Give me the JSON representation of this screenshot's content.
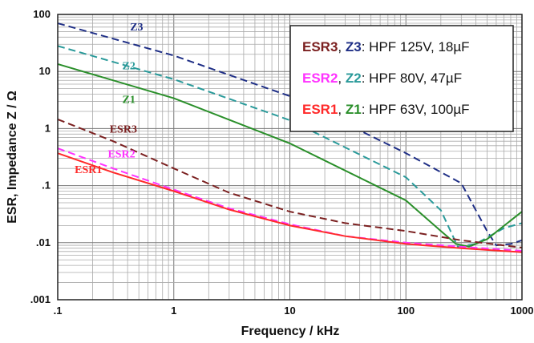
{
  "chart_data": {
    "type": "line",
    "xscale": "log",
    "yscale": "log",
    "xlim": [
      0.1,
      1000
    ],
    "ylim": [
      0.001,
      100
    ],
    "xlabel": "Frequency / kHz",
    "ylabel": "ESR, Impedance Z / Ω",
    "x_ticks": [
      {
        "value": 0.1,
        "label": ".1"
      },
      {
        "value": 1,
        "label": "1"
      },
      {
        "value": 10,
        "label": "10"
      },
      {
        "value": 100,
        "label": "100"
      },
      {
        "value": 1000,
        "label": "1000"
      }
    ],
    "y_ticks": [
      {
        "value": 0.001,
        "label": ".001"
      },
      {
        "value": 0.01,
        "label": ".01"
      },
      {
        "value": 0.1,
        "label": ".1"
      },
      {
        "value": 1,
        "label": "1"
      },
      {
        "value": 10,
        "label": "10"
      },
      {
        "value": 100,
        "label": "100"
      }
    ],
    "grid": true,
    "legend_position": "top-right",
    "legend": [
      {
        "esr_label": "ESR3",
        "z_label": "Z3",
        "rest": ": HPF 125V, 18µF"
      },
      {
        "esr_label": "ESR2",
        "z_label": "Z2",
        "rest": ": HPF 80V, 47µF"
      },
      {
        "esr_label": "ESR1",
        "z_label": "Z1",
        "rest": ": HPF 63V, 100µF"
      }
    ],
    "series": [
      {
        "name": "Z3",
        "color": "#1f2f86",
        "dash": true,
        "label_at": [
          0.42,
          52
        ],
        "points": [
          [
            0.1,
            70
          ],
          [
            1,
            19
          ],
          [
            10,
            3.7
          ],
          [
            100,
            0.37
          ],
          [
            300,
            0.11
          ],
          [
            500,
            0.016
          ],
          [
            600,
            0.009
          ],
          [
            800,
            0.0095
          ],
          [
            1000,
            0.011
          ]
        ]
      },
      {
        "name": "Z2",
        "color": "#2a9a9a",
        "dash": true,
        "label_at": [
          0.36,
          11
        ],
        "points": [
          [
            0.1,
            28
          ],
          [
            1,
            7.3
          ],
          [
            10,
            1.4
          ],
          [
            100,
            0.14
          ],
          [
            200,
            0.037
          ],
          [
            280,
            0.0085
          ],
          [
            400,
            0.0095
          ],
          [
            700,
            0.018
          ],
          [
            1000,
            0.022
          ]
        ]
      },
      {
        "name": "Z1",
        "color": "#2a8f2a",
        "dash": false,
        "label_at": [
          0.36,
          2.8
        ],
        "points": [
          [
            0.1,
            13.5
          ],
          [
            1,
            3.4
          ],
          [
            10,
            0.55
          ],
          [
            100,
            0.055
          ],
          [
            200,
            0.016
          ],
          [
            270,
            0.0095
          ],
          [
            350,
            0.0085
          ],
          [
            500,
            0.0115
          ],
          [
            1000,
            0.035
          ]
        ]
      },
      {
        "name": "ESR3",
        "color": "#7b2020",
        "dash": true,
        "label_at": [
          0.28,
          0.85
        ],
        "points": [
          [
            0.1,
            1.45
          ],
          [
            0.3,
            0.6
          ],
          [
            1,
            0.2
          ],
          [
            3,
            0.075
          ],
          [
            10,
            0.035
          ],
          [
            30,
            0.022
          ],
          [
            100,
            0.016
          ],
          [
            300,
            0.011
          ],
          [
            1000,
            0.0082
          ]
        ]
      },
      {
        "name": "ESR2",
        "color": "#ff33ff",
        "dash": true,
        "label_at": [
          0.27,
          0.31
        ],
        "points": [
          [
            0.1,
            0.45
          ],
          [
            0.3,
            0.2
          ],
          [
            1,
            0.085
          ],
          [
            3,
            0.04
          ],
          [
            10,
            0.021
          ],
          [
            30,
            0.013
          ],
          [
            100,
            0.01
          ],
          [
            300,
            0.0085
          ],
          [
            1000,
            0.0072
          ]
        ]
      },
      {
        "name": "ESR1",
        "color": "#ff2a2a",
        "dash": false,
        "label_at": [
          0.14,
          0.165
        ],
        "points": [
          [
            0.1,
            0.37
          ],
          [
            0.3,
            0.17
          ],
          [
            1,
            0.08
          ],
          [
            3,
            0.038
          ],
          [
            10,
            0.02
          ],
          [
            30,
            0.013
          ],
          [
            100,
            0.0095
          ],
          [
            300,
            0.008
          ],
          [
            1000,
            0.0068
          ]
        ]
      }
    ]
  }
}
